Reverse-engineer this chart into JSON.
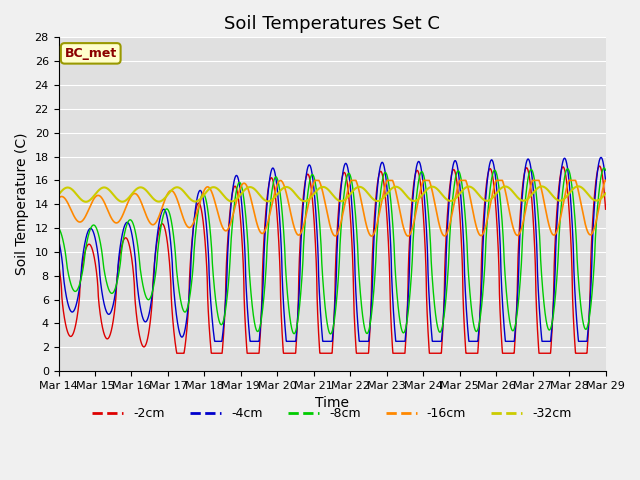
{
  "title": "Soil Temperatures Set C",
  "xlabel": "Time",
  "ylabel": "Soil Temperature (C)",
  "annotation": "BC_met",
  "ylim": [
    0,
    28
  ],
  "colors": {
    "-2cm": "#dd0000",
    "-4cm": "#0000cc",
    "-8cm": "#00cc00",
    "-16cm": "#ff8800",
    "-32cm": "#cccc00"
  },
  "legend_labels": [
    "-2cm",
    "-4cm",
    "-8cm",
    "-16cm",
    "-32cm"
  ],
  "fig_facecolor": "#f0f0f0",
  "ax_facecolor": "#e0e0e0",
  "title_fontsize": 13,
  "axis_fontsize": 10,
  "tick_fontsize": 8,
  "x_tick_labels": [
    "Mar 14",
    "Mar 15",
    "Mar 16",
    "Mar 17",
    "Mar 18",
    "Mar 19",
    "Mar 20",
    "Mar 21",
    "Mar 22",
    "Mar 23",
    "Mar 24",
    "Mar 25",
    "Mar 26",
    "Mar 27",
    "Mar 28",
    "Mar 29"
  ]
}
